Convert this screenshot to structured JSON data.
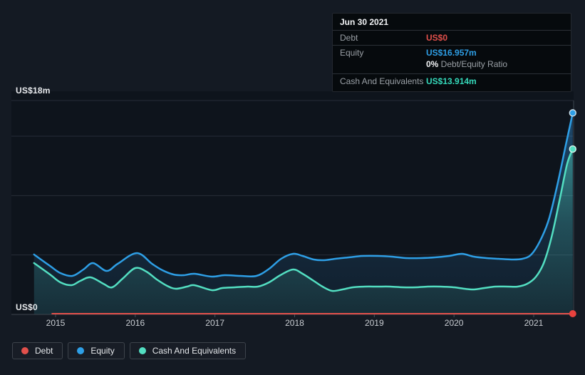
{
  "tooltip": {
    "date": "Jun 30 2021",
    "debt_label": "Debt",
    "debt_value": "US$0",
    "equity_label": "Equity",
    "equity_value": "US$16.957m",
    "ratio_bold": "0%",
    "ratio_text": " Debt/Equity Ratio",
    "cash_label": "Cash And Equivalents",
    "cash_value": "US$13.914m"
  },
  "legend": {
    "debt": "Debt",
    "equity": "Equity",
    "cash": "Cash And Equivalents"
  },
  "colors": {
    "debt": "#e2504b",
    "equity": "#2e9fe6",
    "cash": "#53dfc2",
    "background": "#141a23",
    "plot_bg": "#10151d",
    "grid": "#272d37",
    "axis": "#3e444d",
    "tick": "#4a515a",
    "crosshair": "#2e3640",
    "tooltip_bg": "#060a0d"
  },
  "chart_data": {
    "type": "area",
    "ylabel_top": "US$18m",
    "ylabel_bottom": "US$0",
    "y_unit": "US$ millions",
    "y_range": [
      0,
      18
    ],
    "x_range": [
      2014.73,
      2021.5
    ],
    "x_ticks": [
      "2015",
      "2016",
      "2017",
      "2018",
      "2019",
      "2020",
      "2021"
    ],
    "x_tick_values": [
      2015,
      2016,
      2017,
      2018,
      2019,
      2020,
      2021
    ],
    "gridline_values": [
      18,
      15,
      10,
      5
    ],
    "grid": true,
    "legend_position": "bottom-left",
    "hovered_point": {
      "date": "Jun 30 2021",
      "debt": 0,
      "equity": 16.957,
      "cash": 13.914,
      "debt_equity_ratio_pct": 0
    },
    "series": [
      {
        "name": "Debt",
        "color": "#e2504b",
        "area": false,
        "points": [
          [
            2014.95,
            0
          ],
          [
            2021.49,
            0
          ]
        ]
      },
      {
        "name": "Equity",
        "color": "#2e9fe6",
        "area": true,
        "points": [
          [
            2014.73,
            5.04
          ],
          [
            2014.93,
            4.08
          ],
          [
            2015.06,
            3.48
          ],
          [
            2015.21,
            3.24
          ],
          [
            2015.35,
            3.78
          ],
          [
            2015.47,
            4.32
          ],
          [
            2015.64,
            3.66
          ],
          [
            2015.78,
            4.26
          ],
          [
            2016.02,
            5.16
          ],
          [
            2016.21,
            4.26
          ],
          [
            2016.34,
            3.72
          ],
          [
            2016.48,
            3.36
          ],
          [
            2016.61,
            3.3
          ],
          [
            2016.74,
            3.42
          ],
          [
            2016.96,
            3.18
          ],
          [
            2017.12,
            3.3
          ],
          [
            2017.32,
            3.24
          ],
          [
            2017.52,
            3.24
          ],
          [
            2017.68,
            3.84
          ],
          [
            2017.83,
            4.68
          ],
          [
            2017.98,
            5.1
          ],
          [
            2018.1,
            4.92
          ],
          [
            2018.24,
            4.62
          ],
          [
            2018.37,
            4.56
          ],
          [
            2018.51,
            4.68
          ],
          [
            2018.68,
            4.8
          ],
          [
            2018.86,
            4.92
          ],
          [
            2019.04,
            4.92
          ],
          [
            2019.22,
            4.86
          ],
          [
            2019.4,
            4.74
          ],
          [
            2019.58,
            4.74
          ],
          [
            2019.76,
            4.8
          ],
          [
            2019.94,
            4.92
          ],
          [
            2020.1,
            5.1
          ],
          [
            2020.25,
            4.86
          ],
          [
            2020.41,
            4.74
          ],
          [
            2020.56,
            4.68
          ],
          [
            2020.72,
            4.62
          ],
          [
            2020.86,
            4.68
          ],
          [
            2020.97,
            5.04
          ],
          [
            2021.08,
            6.18
          ],
          [
            2021.19,
            7.98
          ],
          [
            2021.3,
            10.98
          ],
          [
            2021.4,
            14.16
          ],
          [
            2021.49,
            16.957
          ]
        ]
      },
      {
        "name": "Cash And Equivalents",
        "color": "#53dfc2",
        "area": true,
        "points": [
          [
            2014.73,
            4.32
          ],
          [
            2014.93,
            3.36
          ],
          [
            2015.06,
            2.7
          ],
          [
            2015.2,
            2.46
          ],
          [
            2015.31,
            2.82
          ],
          [
            2015.44,
            3.12
          ],
          [
            2015.6,
            2.58
          ],
          [
            2015.71,
            2.28
          ],
          [
            2015.84,
            3.0
          ],
          [
            2016.0,
            3.9
          ],
          [
            2016.14,
            3.6
          ],
          [
            2016.27,
            2.94
          ],
          [
            2016.4,
            2.4
          ],
          [
            2016.51,
            2.16
          ],
          [
            2016.65,
            2.34
          ],
          [
            2016.74,
            2.46
          ],
          [
            2016.96,
            2.04
          ],
          [
            2017.09,
            2.22
          ],
          [
            2017.25,
            2.28
          ],
          [
            2017.41,
            2.34
          ],
          [
            2017.54,
            2.34
          ],
          [
            2017.68,
            2.7
          ],
          [
            2017.82,
            3.3
          ],
          [
            2017.98,
            3.78
          ],
          [
            2018.1,
            3.42
          ],
          [
            2018.24,
            2.82
          ],
          [
            2018.35,
            2.34
          ],
          [
            2018.47,
            1.98
          ],
          [
            2018.6,
            2.1
          ],
          [
            2018.73,
            2.28
          ],
          [
            2018.88,
            2.34
          ],
          [
            2019.04,
            2.34
          ],
          [
            2019.2,
            2.34
          ],
          [
            2019.36,
            2.28
          ],
          [
            2019.52,
            2.28
          ],
          [
            2019.67,
            2.34
          ],
          [
            2019.83,
            2.34
          ],
          [
            2020.0,
            2.28
          ],
          [
            2020.13,
            2.16
          ],
          [
            2020.25,
            2.1
          ],
          [
            2020.38,
            2.22
          ],
          [
            2020.52,
            2.34
          ],
          [
            2020.67,
            2.34
          ],
          [
            2020.8,
            2.34
          ],
          [
            2020.92,
            2.58
          ],
          [
            2021.03,
            3.18
          ],
          [
            2021.13,
            4.38
          ],
          [
            2021.23,
            6.66
          ],
          [
            2021.33,
            9.78
          ],
          [
            2021.42,
            12.66
          ],
          [
            2021.49,
            13.914
          ]
        ]
      }
    ]
  }
}
